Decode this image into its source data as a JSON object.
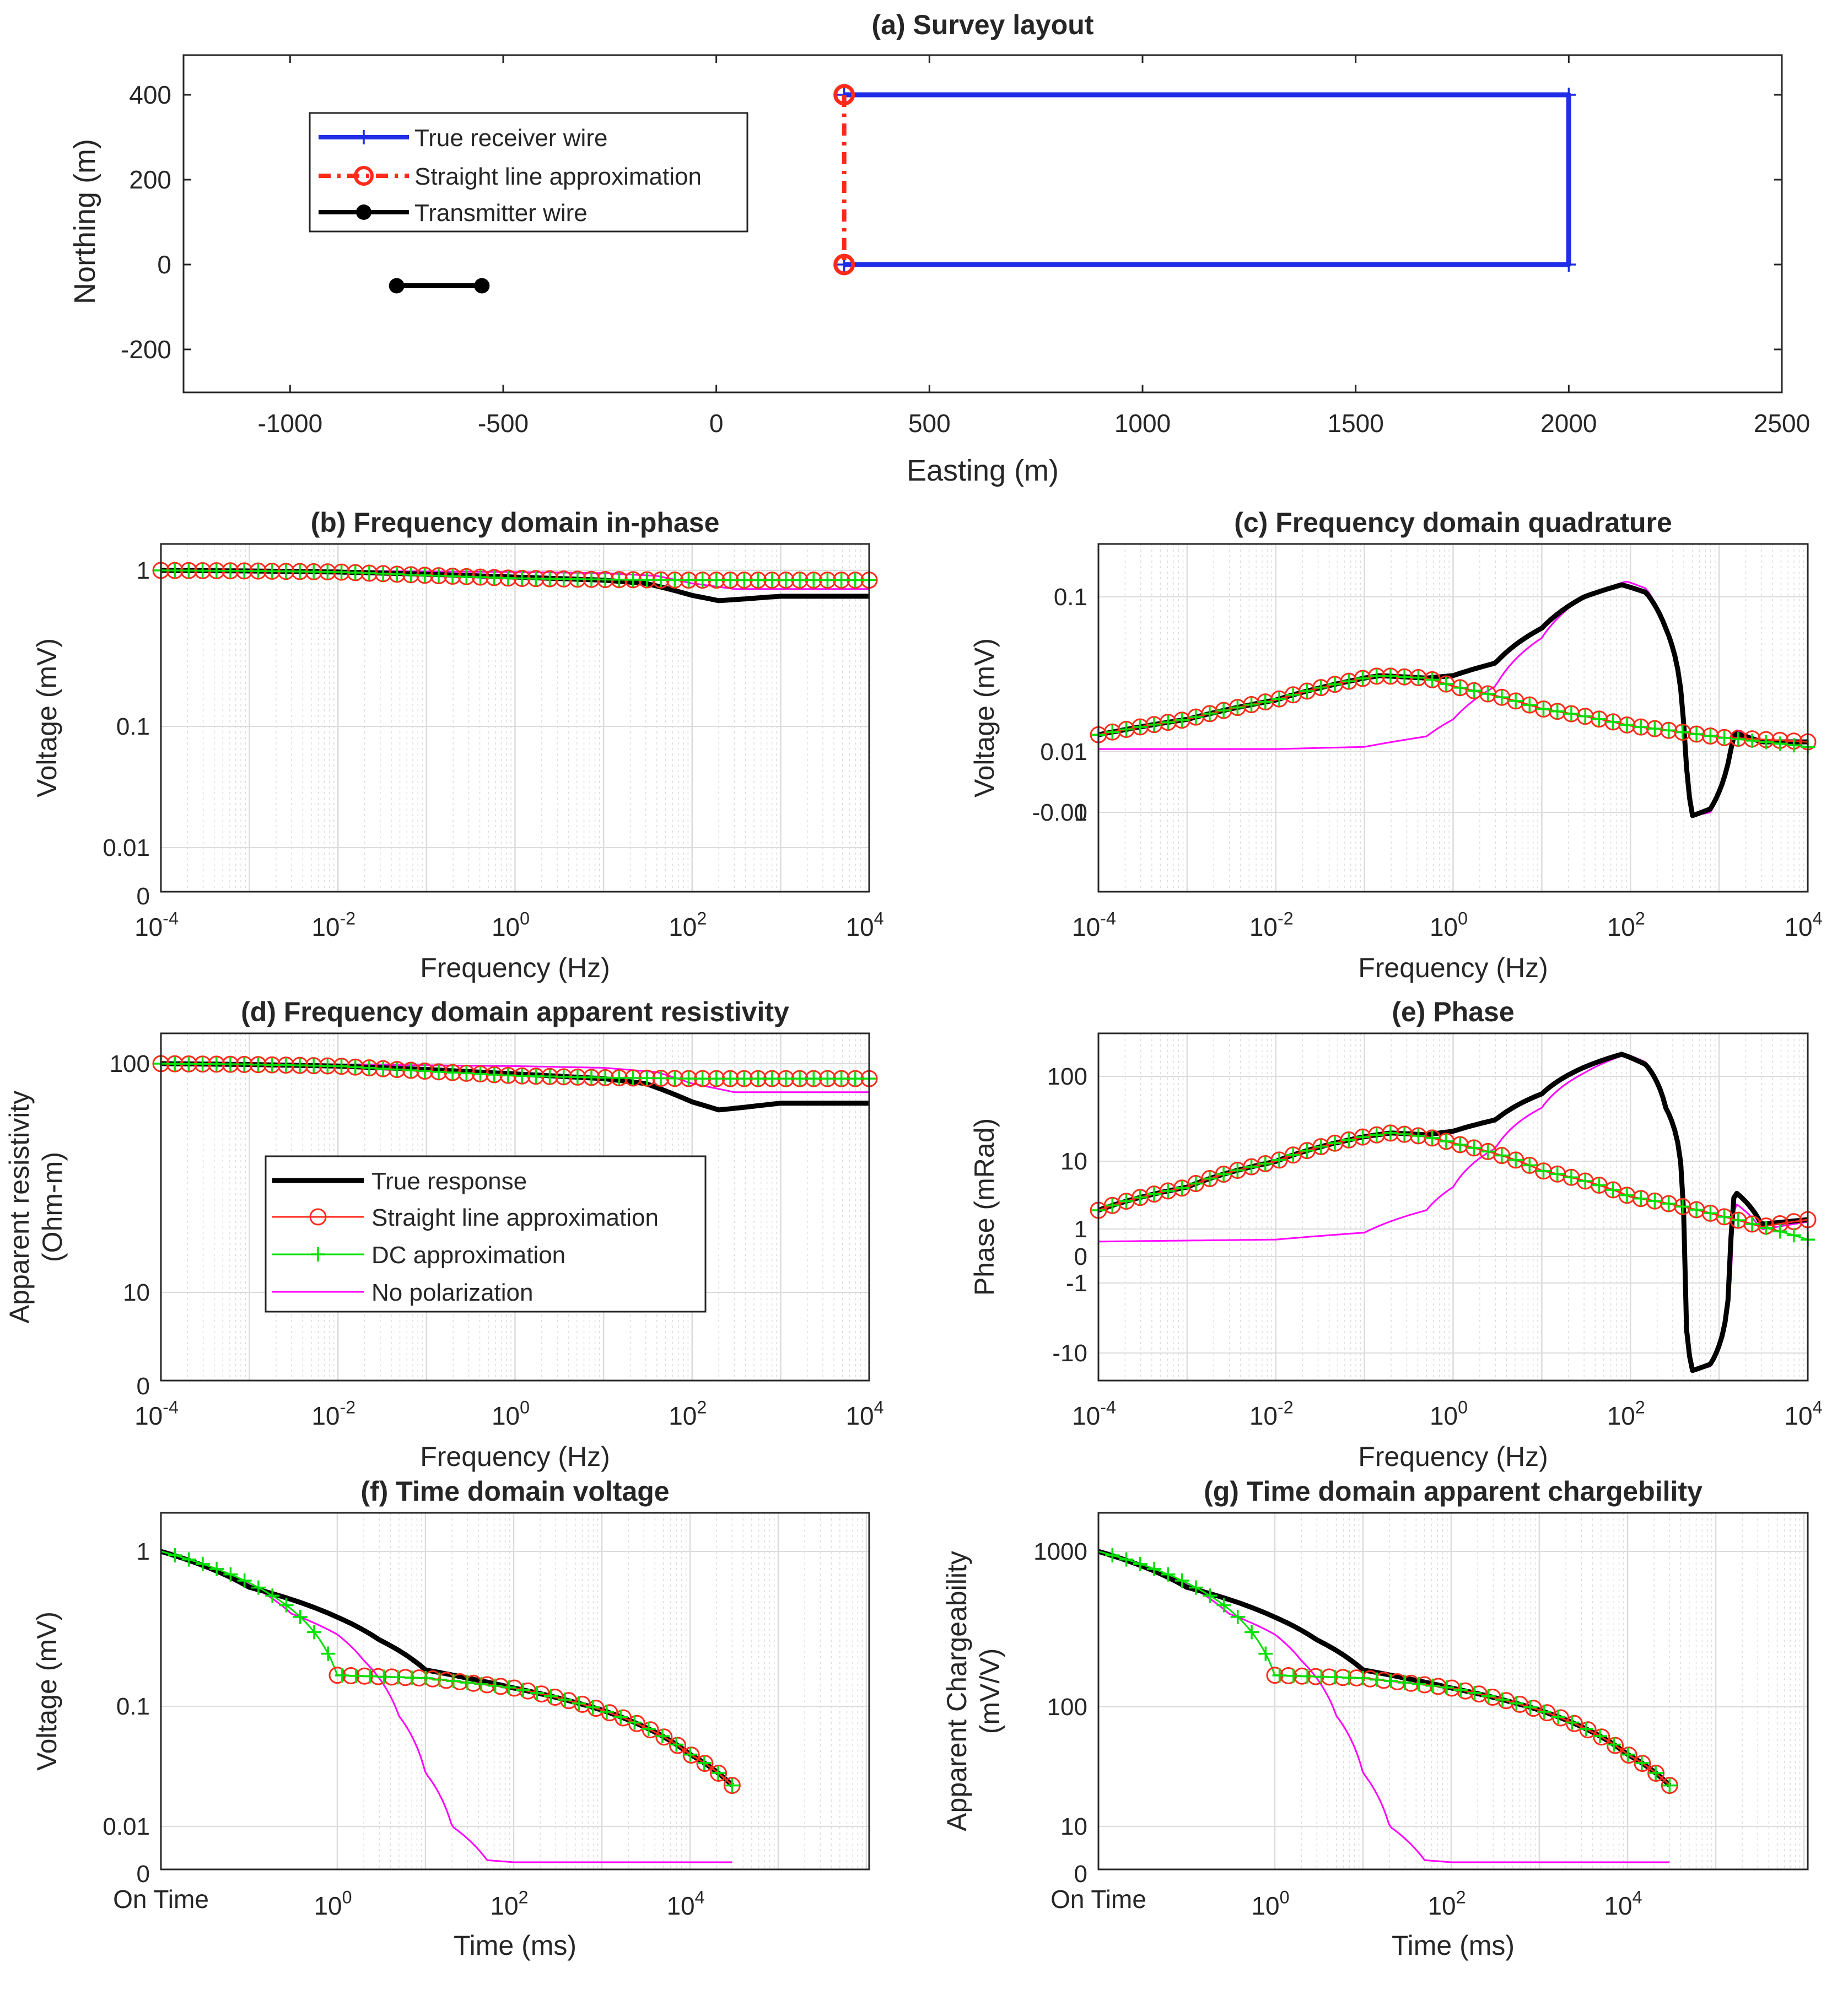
{
  "colors": {
    "true_response": "#000000",
    "straight_line": "#ff2a1a",
    "dc_approx": "#00e000",
    "no_polarization": "#ff00ff",
    "receiver_wire": "#1f2de6",
    "axis": "#262626",
    "grid": "#dcdcdc"
  },
  "chart_data": [
    {
      "id": "a",
      "type": "line",
      "title": "(a) Survey layout",
      "xlabel": "Easting (m)",
      "ylabel": "Northing (m)",
      "xlim": [
        -1250,
        2500
      ],
      "ylim": [
        -300,
        500
      ],
      "xticks": [
        -1000,
        -500,
        0,
        500,
        1000,
        1500,
        2000,
        2500
      ],
      "xticklabels": [
        "-1000",
        "-500",
        "0",
        "500",
        "1000",
        "1500",
        "2000",
        "2500"
      ],
      "yticks": [
        -200,
        0,
        200,
        400
      ],
      "yticklabels": [
        "-200",
        "0",
        "200",
        "400"
      ],
      "grid": false,
      "legend_position": "top-left",
      "series": [
        {
          "name": "True receiver wire",
          "color": "#1f2de6",
          "marker": "plus",
          "x": [
            300,
            2000,
            2000,
            300
          ],
          "y": [
            400,
            400,
            0,
            0
          ]
        },
        {
          "name": "Straight line approximation",
          "color": "#ff2a1a",
          "marker": "circle",
          "dashed": true,
          "x": [
            300,
            300
          ],
          "y": [
            400,
            0
          ]
        },
        {
          "name": "Transmitter wire",
          "color": "#000000",
          "marker": "dot",
          "x": [
            -750,
            -550
          ],
          "y": [
            -50,
            -50
          ]
        }
      ]
    },
    {
      "id": "b",
      "type": "line",
      "title": "(b) Frequency domain in-phase",
      "xlabel": "Frequency (Hz)",
      "ylabel": "Voltage (mV)",
      "xscale": "log",
      "xlim": [
        0.0001,
        10000
      ],
      "yticklabels": [
        "0",
        "0.01",
        "0.1",
        "1"
      ],
      "grid": true,
      "series": [
        {
          "name": "True response",
          "x": [
            0.0001,
            0.001,
            0.01,
            0.1,
            1,
            10,
            30,
            100,
            200,
            400,
            1000,
            10000
          ],
          "y": [
            1.0,
            0.99,
            0.97,
            0.93,
            0.88,
            0.83,
            0.78,
            0.62,
            0.56,
            0.58,
            0.61,
            0.61
          ]
        },
        {
          "name": "Straight line approximation",
          "x": [
            0.0001,
            0.001,
            0.01,
            0.1,
            1,
            10,
            100,
            1000,
            10000
          ],
          "y": [
            1.0,
            0.99,
            0.97,
            0.91,
            0.86,
            0.84,
            0.83,
            0.83,
            0.83
          ]
        },
        {
          "name": "DC approximation",
          "x": [
            0.0001,
            0.001,
            0.01,
            0.1,
            1,
            10,
            100,
            1000,
            10000
          ],
          "y": [
            1.0,
            0.99,
            0.97,
            0.91,
            0.86,
            0.84,
            0.83,
            0.83,
            0.83
          ]
        },
        {
          "name": "No polarization",
          "x": [
            0.0001,
            0.01,
            1,
            10,
            40,
            100,
            300,
            1000,
            10000
          ],
          "y": [
            0.99,
            0.99,
            0.97,
            0.95,
            0.9,
            0.78,
            0.7,
            0.7,
            0.7
          ]
        }
      ]
    },
    {
      "id": "c",
      "type": "line",
      "title": "(c) Frequency domain quadrature",
      "xlabel": "Frequency (Hz)",
      "ylabel": "Voltage (mV)",
      "xscale": "log",
      "xlim": [
        0.0001,
        10000
      ],
      "yticklabels": [
        "-0.01",
        "0",
        "0.01",
        "0.1"
      ],
      "grid": true,
      "series": [
        {
          "name": "True response",
          "x": [
            0.0001,
            0.001,
            0.01,
            0.1,
            0.15,
            0.5,
            1,
            3,
            10,
            30,
            80,
            150,
            250,
            400,
            500,
            800,
            1500,
            3000,
            10000
          ],
          "y": [
            0.0018,
            0.004,
            0.008,
            0.015,
            0.016,
            0.015,
            0.016,
            0.022,
            0.05,
            0.1,
            0.13,
            0.11,
            0.05,
            0.003,
            -0.011,
            -0.009,
            0.002,
            0.001,
            0.001
          ]
        },
        {
          "name": "Straight line approximation",
          "x": [
            0.0001,
            0.001,
            0.01,
            0.1,
            0.15,
            0.5,
            1,
            10,
            100,
            1000,
            10000
          ],
          "y": [
            0.0018,
            0.004,
            0.008,
            0.015,
            0.016,
            0.015,
            0.012,
            0.006,
            0.003,
            0.0015,
            0.001
          ]
        },
        {
          "name": "DC approximation",
          "x": [
            0.0001,
            0.001,
            0.01,
            0.1,
            0.15,
            0.5,
            1,
            10,
            100,
            1000,
            10000
          ],
          "y": [
            0.0018,
            0.004,
            0.008,
            0.015,
            0.016,
            0.015,
            0.012,
            0.006,
            0.003,
            0.0015,
            0.0005
          ]
        },
        {
          "name": "No polarization",
          "x": [
            0.0001,
            0.01,
            0.1,
            0.5,
            1,
            3,
            10,
            30,
            90,
            150,
            250,
            400,
            500,
            800,
            1500,
            3000,
            10000
          ],
          "y": [
            0.0003,
            0.0003,
            0.0005,
            0.0016,
            0.004,
            0.012,
            0.04,
            0.1,
            0.14,
            0.12,
            0.05,
            0.003,
            -0.011,
            -0.01,
            0.0025,
            0.001,
            0.001
          ]
        }
      ]
    },
    {
      "id": "d",
      "type": "line",
      "title": "(d) Frequency domain apparent resistivity",
      "xlabel": "Frequency (Hz)",
      "ylabel": "Apparent resistivity (Ohm-m)",
      "xscale": "log",
      "xlim": [
        0.0001,
        10000
      ],
      "yticklabels": [
        "0",
        "10",
        "100"
      ],
      "grid": true,
      "legend_position": "left",
      "series": [
        {
          "name": "True response",
          "x": [
            0.0001,
            0.001,
            0.01,
            0.1,
            1,
            10,
            30,
            100,
            200,
            400,
            1000,
            10000
          ],
          "y": [
            100,
            99,
            97,
            93,
            88,
            83,
            78,
            62,
            56,
            58,
            61,
            61
          ]
        },
        {
          "name": "Straight line approximation",
          "x": [
            0.0001,
            0.001,
            0.01,
            0.1,
            1,
            10,
            100,
            1000,
            10000
          ],
          "y": [
            100,
            99,
            97,
            91,
            86,
            84,
            83,
            83,
            83
          ]
        },
        {
          "name": "DC approximation",
          "x": [
            0.0001,
            0.001,
            0.01,
            0.1,
            1,
            10,
            100,
            1000,
            10000
          ],
          "y": [
            100,
            99,
            97,
            91,
            86,
            84,
            83,
            83,
            83
          ]
        },
        {
          "name": "No polarization",
          "x": [
            0.0001,
            0.01,
            1,
            10,
            40,
            100,
            300,
            1000,
            10000
          ],
          "y": [
            99,
            99,
            97,
            95,
            90,
            78,
            70,
            70,
            70
          ]
        }
      ]
    },
    {
      "id": "e",
      "type": "line",
      "title": "(e) Phase",
      "xlabel": "Frequency (Hz)",
      "ylabel": "Phase (mRad)",
      "xscale": "log",
      "xlim": [
        0.0001,
        10000
      ],
      "yticklabels": [
        "-10",
        "-1",
        "0",
        "1",
        "10",
        "100"
      ],
      "grid": true,
      "series": [
        {
          "name": "True response",
          "x": [
            0.0001,
            0.001,
            0.01,
            0.1,
            0.2,
            0.5,
            1,
            3,
            10,
            30,
            80,
            150,
            250,
            400,
            500,
            800,
            1500,
            3000,
            10000
          ],
          "y": [
            1.5,
            3.5,
            8,
            17,
            19,
            18,
            20,
            28,
            60,
            130,
            190,
            140,
            40,
            1,
            -17,
            -14,
            3,
            0.8,
            1
          ]
        },
        {
          "name": "Straight line approximation",
          "x": [
            0.0001,
            0.001,
            0.01,
            0.1,
            0.2,
            0.5,
            1,
            10,
            100,
            1000,
            3000,
            10000
          ],
          "y": [
            1.5,
            3.5,
            8,
            17,
            19,
            17,
            14,
            6,
            2.5,
            1.2,
            0.7,
            1
          ]
        },
        {
          "name": "DC approximation",
          "x": [
            0.0001,
            0.001,
            0.01,
            0.1,
            0.2,
            0.5,
            1,
            10,
            100,
            1000,
            3000,
            10000
          ],
          "y": [
            1.5,
            3.5,
            8,
            17,
            19,
            17,
            14,
            6,
            2.5,
            1.2,
            0.7,
            0.3
          ]
        },
        {
          "name": "No polarization",
          "x": [
            0.0001,
            0.01,
            0.1,
            0.5,
            1,
            3,
            10,
            30,
            90,
            150,
            250,
            400,
            500,
            800,
            1500,
            3000,
            10000
          ],
          "y": [
            0.25,
            0.3,
            0.5,
            1.5,
            3.5,
            12,
            40,
            110,
            190,
            150,
            40,
            1,
            -17,
            -15,
            2,
            0.6,
            0.9
          ]
        }
      ]
    },
    {
      "id": "f",
      "type": "line",
      "title": "(f) Time domain voltage",
      "xlabel": "Time (ms)",
      "ylabel": "Voltage (mV)",
      "xscale": "log",
      "xlim": [
        0.01,
        10000000
      ],
      "xticklabels": [
        "On Time",
        "10^0",
        "10^2",
        "10^4"
      ],
      "yticklabels": [
        "0",
        "0.01",
        "0.1",
        "1"
      ],
      "grid": true,
      "series": [
        {
          "name": "True response",
          "x": [
            0.01,
            0.1,
            1,
            3,
            10,
            30,
            100,
            1000,
            10000,
            30000
          ],
          "y": [
            1,
            0.5,
            0.28,
            0.18,
            0.1,
            0.085,
            0.07,
            0.045,
            0.018,
            0.009
          ]
        },
        {
          "name": "Straight line approximation",
          "x": [
            1,
            10,
            100,
            1000,
            10000,
            30000
          ],
          "y": [
            0.09,
            0.085,
            0.07,
            0.045,
            0.018,
            0.009
          ]
        },
        {
          "name": "DC approximation",
          "x": [
            0.01,
            1,
            10,
            100,
            1000,
            10000,
            30000
          ],
          "y": [
            1,
            0.09,
            0.085,
            0.07,
            0.045,
            0.018,
            0.009
          ]
        },
        {
          "name": "No polarization",
          "x": [
            0.01,
            0.3,
            1,
            2,
            5,
            10,
            20,
            50,
            100,
            1000,
            30000
          ],
          "y": [
            1,
            0.3,
            0.2,
            0.12,
            0.04,
            0.012,
            0.003,
            0.0006,
            0.0005,
            0.0005,
            0.0005
          ]
        }
      ]
    },
    {
      "id": "g",
      "type": "line",
      "title": "(g) Time domain apparent chargebility",
      "xlabel": "Time (ms)",
      "ylabel": "Apparent Chargeability (mV/V)",
      "xscale": "log",
      "xlim": [
        0.01,
        10000000
      ],
      "xticklabels": [
        "On Time",
        "10^0",
        "10^2",
        "10^4"
      ],
      "yticklabels": [
        "0",
        "10",
        "100",
        "1000"
      ],
      "grid": true,
      "series": [
        {
          "name": "True response",
          "x": [
            0.01,
            0.1,
            1,
            3,
            10,
            30,
            100,
            1000,
            10000,
            30000
          ],
          "y": [
            1000,
            500,
            280,
            180,
            100,
            85,
            70,
            45,
            18,
            9
          ]
        },
        {
          "name": "Straight line approximation",
          "x": [
            1,
            10,
            100,
            1000,
            10000,
            30000
          ],
          "y": [
            90,
            85,
            70,
            45,
            18,
            9
          ]
        },
        {
          "name": "DC approximation",
          "x": [
            0.01,
            1,
            10,
            100,
            1000,
            10000,
            30000
          ],
          "y": [
            1000,
            90,
            85,
            70,
            45,
            18,
            9
          ]
        },
        {
          "name": "No polarization",
          "x": [
            0.01,
            0.3,
            1,
            2,
            5,
            10,
            20,
            50,
            100,
            1000,
            30000
          ],
          "y": [
            1000,
            300,
            200,
            120,
            40,
            12,
            3,
            0.6,
            0.5,
            0.5,
            0.5
          ]
        }
      ]
    }
  ]
}
